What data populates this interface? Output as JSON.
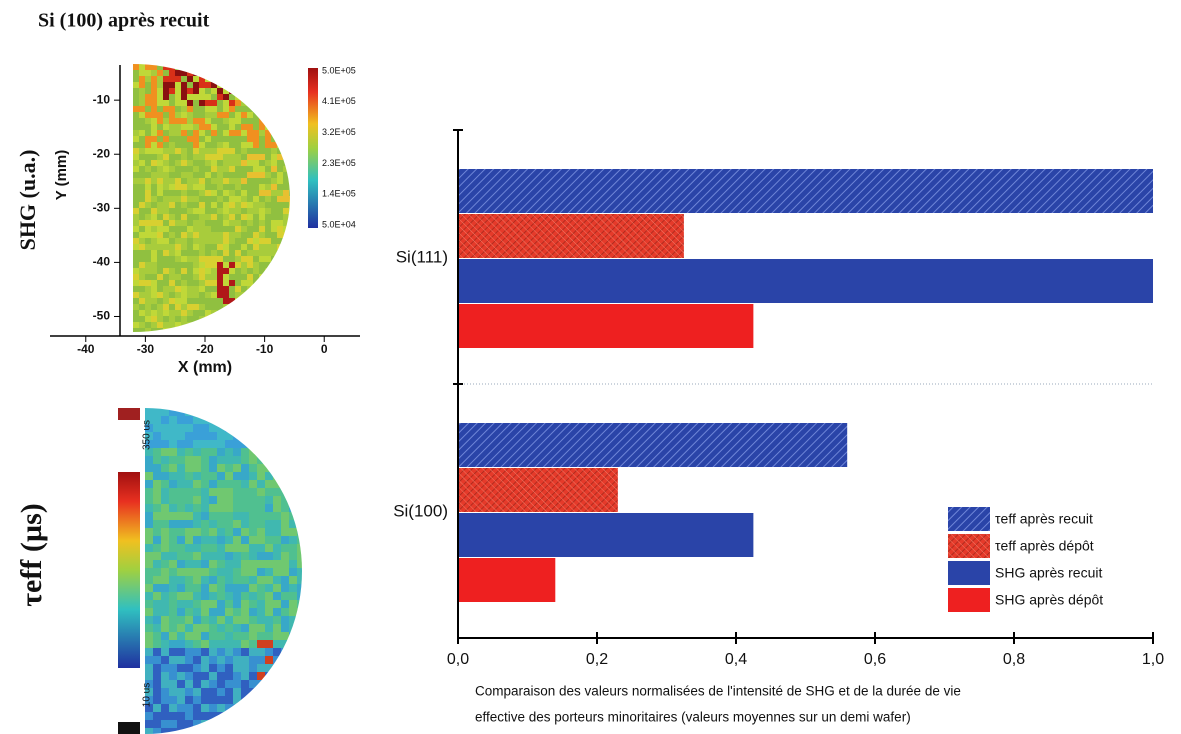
{
  "chart_data": [
    {
      "type": "heatmap",
      "title": "Si (100) après recuit",
      "row_label": "SHG (u.a.)",
      "xlabel": "X (mm)",
      "ylabel": "Y (mm)",
      "xlim": [
        -46,
        6
      ],
      "ylim": [
        -52.5,
        -3.5
      ],
      "xticks": [
        -40,
        -30,
        -20,
        -10,
        0
      ],
      "yticks": [
        -10,
        -20,
        -30,
        -40,
        -50
      ],
      "clim": [
        50000,
        500000
      ],
      "cticks": [
        {
          "value": 500000,
          "label": "5.0E+05"
        },
        {
          "value": 410000,
          "label": "4.1E+05"
        },
        {
          "value": 320000,
          "label": "3.2E+05"
        },
        {
          "value": 230000,
          "label": "2.3E+05"
        },
        {
          "value": 140000,
          "label": "1.4E+05"
        },
        {
          "value": 50000,
          "label": "5.0E+04"
        }
      ]
    },
    {
      "type": "heatmap",
      "row_label": "τeff (µs)",
      "clim": [
        10,
        350
      ],
      "cticks": [
        {
          "value": 350,
          "label": "350 us"
        },
        {
          "value": 10,
          "label": "10 us"
        }
      ]
    },
    {
      "type": "hbar",
      "categories": [
        "Si(111)",
        "Si(100)"
      ],
      "series": [
        {
          "name": "τeff après recuit",
          "color": "#2a44a8",
          "hatch": true,
          "values": [
            1.0,
            0.56
          ]
        },
        {
          "name": "τeff après dépôt",
          "color": "#e53a2a",
          "hatch": true,
          "values": [
            0.325,
            0.23
          ]
        },
        {
          "name": "SHG après recuit",
          "color": "#2a44a8",
          "hatch": false,
          "values": [
            1.0,
            0.425
          ]
        },
        {
          "name": "SHG après dépôt",
          "color": "#ee2020",
          "hatch": false,
          "values": [
            0.425,
            0.14
          ]
        }
      ],
      "xlim": [
        0,
        1
      ],
      "xticks": [
        {
          "value": 0,
          "label": "0,0"
        },
        {
          "value": 0.2,
          "label": "0,2"
        },
        {
          "value": 0.4,
          "label": "0,4"
        },
        {
          "value": 0.6,
          "label": "0,6"
        },
        {
          "value": 0.8,
          "label": "0,8"
        },
        {
          "value": 1,
          "label": "1,0"
        }
      ],
      "legend": "lower right",
      "caption": [
        "Comparaison des valeurs normalisées de l'intensité de SHG et de la durée de vie",
        "effective des porteurs minoritaires (valeurs moyennes sur un demi wafer)"
      ]
    }
  ]
}
